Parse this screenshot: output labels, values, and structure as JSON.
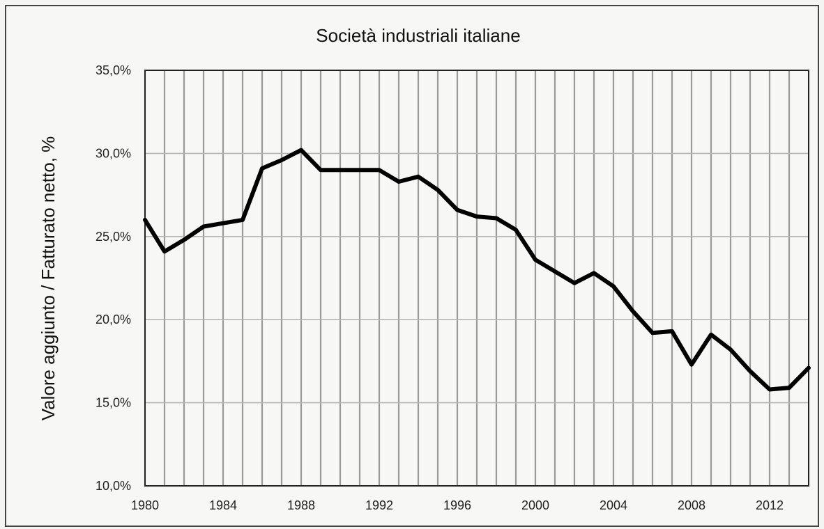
{
  "chart_data": {
    "type": "line",
    "title": "Società industriali italiane",
    "xlabel": "",
    "ylabel": "Valore aggiunto / Fatturato netto, %",
    "xlim": [
      1980,
      2014
    ],
    "ylim": [
      10,
      35
    ],
    "x_ticks": [
      "1980",
      "1984",
      "1988",
      "1992",
      "1996",
      "2000",
      "2004",
      "2008",
      "2012"
    ],
    "y_ticks": [
      "10,0%",
      "15,0%",
      "20,0%",
      "25,0%",
      "30,0%",
      "35,0%"
    ],
    "grid": true,
    "legend": "none",
    "series": [
      {
        "x": [
          1980,
          1981,
          1982,
          1983,
          1984,
          1985,
          1986,
          1987,
          1988,
          1989,
          1990,
          1991,
          1992,
          1993,
          1994,
          1995,
          1996,
          1997,
          1998,
          1999,
          2000,
          2001,
          2002,
          2003,
          2004,
          2005,
          2006,
          2007,
          2008,
          2009,
          2010,
          2011,
          2012,
          2013,
          2014
        ],
        "values": [
          26.0,
          24.1,
          24.8,
          25.6,
          25.8,
          26.0,
          29.1,
          29.6,
          30.2,
          29.0,
          29.0,
          29.0,
          29.0,
          28.3,
          28.6,
          27.8,
          26.6,
          26.2,
          26.1,
          25.4,
          23.6,
          22.9,
          22.2,
          22.8,
          22.0,
          20.5,
          19.2,
          19.3,
          17.3,
          19.1,
          18.2,
          16.9,
          15.8,
          15.9,
          17.1
        ],
        "color": "#000000"
      }
    ]
  }
}
